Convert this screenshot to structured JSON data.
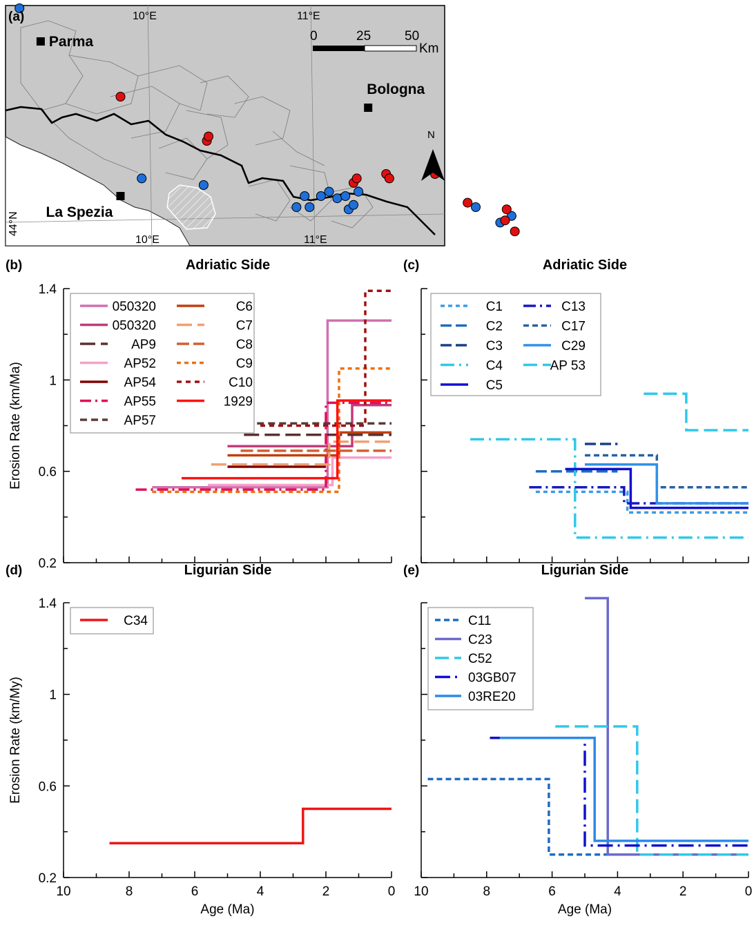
{
  "panel_labels": [
    "(a)",
    "(b)",
    "(c)",
    "(d)",
    "(e)"
  ],
  "map": {
    "cities": [
      {
        "name": "Parma",
        "lon": 9.33,
        "lat": 44.8
      },
      {
        "name": "Bologna",
        "lon": 11.34,
        "lat": 44.5
      },
      {
        "name": "La Spezia",
        "lon": 9.82,
        "lat": 44.1
      }
    ],
    "graticule": {
      "top": [
        "10°E",
        "11°E"
      ],
      "bottom": [
        "10°E",
        "11°E"
      ],
      "left": [
        "44°N"
      ]
    },
    "scalebar": {
      "ticks": [
        "0",
        "25",
        "50"
      ],
      "unit": "Km"
    },
    "north": "N",
    "land_color": "#c8c8c8",
    "sea_color": "#ffffff",
    "sites_blue": [
      [
        9.2,
        44.95
      ],
      [
        9.95,
        44.18
      ],
      [
        10.33,
        44.15
      ],
      [
        10.9,
        44.05
      ],
      [
        10.95,
        44.1
      ],
      [
        10.98,
        44.05
      ],
      [
        11.05,
        44.1
      ],
      [
        11.1,
        44.12
      ],
      [
        11.15,
        44.09
      ],
      [
        11.2,
        44.1
      ],
      [
        11.22,
        44.04
      ],
      [
        11.25,
        44.06
      ],
      [
        11.28,
        44.12
      ],
      [
        12.0,
        44.05
      ],
      [
        12.15,
        43.98
      ],
      [
        12.22,
        44.01
      ]
    ],
    "sites_red": [
      [
        9.82,
        44.55
      ],
      [
        10.35,
        44.35
      ],
      [
        10.36,
        44.37
      ],
      [
        11.25,
        44.16
      ],
      [
        11.27,
        44.18
      ],
      [
        11.45,
        44.2
      ],
      [
        11.47,
        44.18
      ],
      [
        11.75,
        44.2
      ],
      [
        11.95,
        44.07
      ],
      [
        12.19,
        44.04
      ],
      [
        12.18,
        43.99
      ],
      [
        12.24,
        43.94
      ]
    ],
    "blue_color": "#1f6fd9",
    "red_color": "#e01010"
  },
  "chart_data": [
    {
      "id": "b",
      "type": "line",
      "title": "Adriatic Side",
      "ylabel": "Erosion Rate (km/Ma)",
      "xlabel": "",
      "xlim": [
        10,
        0
      ],
      "ylim": [
        0.2,
        1.4
      ],
      "yticks": [
        0.2,
        0.6,
        1.0,
        1.4
      ],
      "ytick_labels": [
        "0.2",
        "0.6",
        "1",
        "1.4"
      ],
      "xticks": [
        10,
        8,
        6,
        4,
        2,
        0
      ],
      "xtick_labels": [],
      "legend": "top-left",
      "series": [
        {
          "name": "050320",
          "color": "#d070b0",
          "dash": "",
          "steps": [
            [
              7.3,
              0.53
            ],
            [
              1.95,
              0.53
            ],
            [
              1.95,
              1.26
            ],
            [
              0,
              1.26
            ]
          ]
        },
        {
          "name": "050320",
          "color": "#c03c78",
          "dash": "",
          "steps": [
            [
              5.0,
              0.71
            ],
            [
              1.2,
              0.71
            ],
            [
              1.2,
              0.89
            ],
            [
              0,
              0.89
            ]
          ]
        },
        {
          "name": "AP9",
          "color": "#5a3030",
          "dash": "22 8",
          "steps": [
            [
              4.5,
              0.76
            ],
            [
              1.8,
              0.76
            ],
            [
              1.8,
              0.76
            ],
            [
              0,
              0.76
            ]
          ]
        },
        {
          "name": "AP52",
          "color": "#f4a0c8",
          "dash": "",
          "steps": [
            [
              5.6,
              0.54
            ],
            [
              1.8,
              0.54
            ],
            [
              1.8,
              0.66
            ],
            [
              0,
              0.66
            ]
          ]
        },
        {
          "name": "AP54",
          "color": "#800000",
          "dash": "",
          "steps": [
            [
              5.0,
              0.62
            ],
            [
              2.0,
              0.62
            ],
            [
              2.0,
              0.62
            ]
          ]
        },
        {
          "name": "AP55",
          "color": "#e0105a",
          "dash": "16 6 3 6",
          "steps": [
            [
              7.8,
              0.52
            ],
            [
              2.0,
              0.52
            ],
            [
              2.0,
              0.9
            ],
            [
              0,
              0.9
            ]
          ]
        },
        {
          "name": "AP57",
          "color": "#5a3a3a",
          "dash": "10 6",
          "steps": [
            [
              4.1,
              0.81
            ],
            [
              1.5,
              0.81
            ],
            [
              1.5,
              0.81
            ],
            [
              0,
              0.81
            ]
          ]
        },
        {
          "name": "C6",
          "color": "#c04010",
          "dash": "",
          "steps": [
            [
              5.0,
              0.67
            ],
            [
              1.6,
              0.67
            ],
            [
              1.6,
              0.77
            ],
            [
              0,
              0.77
            ]
          ]
        },
        {
          "name": "C7",
          "color": "#f0a070",
          "dash": "22 8",
          "steps": [
            [
              5.5,
              0.63
            ],
            [
              1.9,
              0.63
            ],
            [
              1.9,
              0.73
            ],
            [
              0,
              0.73
            ]
          ]
        },
        {
          "name": "C8",
          "color": "#d06030",
          "dash": "18 6",
          "steps": [
            [
              4.6,
              0.69
            ],
            [
              1.7,
              0.69
            ],
            [
              1.7,
              0.69
            ],
            [
              0,
              0.69
            ]
          ]
        },
        {
          "name": "C9",
          "color": "#f07010",
          "dash": "6 5",
          "steps": [
            [
              7.3,
              0.51
            ],
            [
              1.6,
              0.51
            ],
            [
              1.6,
              1.05
            ],
            [
              0,
              1.05
            ]
          ]
        },
        {
          "name": "C10",
          "color": "#a01010",
          "dash": "7 6",
          "steps": [
            [
              4.0,
              0.8
            ],
            [
              0.8,
              0.8
            ],
            [
              0.8,
              1.39
            ],
            [
              0,
              1.39
            ]
          ]
        },
        {
          "name": "1929",
          "color": "#ff1010",
          "dash": "",
          "steps": [
            [
              6.4,
              0.57
            ],
            [
              1.65,
              0.57
            ],
            [
              1.65,
              0.91
            ],
            [
              0,
              0.91
            ]
          ]
        }
      ]
    },
    {
      "id": "c",
      "type": "line",
      "title": "Adriatic Side",
      "ylabel": "",
      "xlabel": "",
      "xlim": [
        10,
        0
      ],
      "ylim": [
        0.2,
        1.4
      ],
      "yticks": [
        0.2,
        0.6,
        1.0,
        1.4
      ],
      "ytick_labels": [],
      "xticks": [
        10,
        8,
        6,
        4,
        2,
        0
      ],
      "xtick_labels": [],
      "legend": "top-left",
      "series": [
        {
          "name": "C1",
          "color": "#3a9be8",
          "dash": "6 5",
          "steps": [
            [
              6.5,
              0.51
            ],
            [
              3.7,
              0.51
            ],
            [
              3.7,
              0.42
            ],
            [
              0,
              0.42
            ]
          ]
        },
        {
          "name": "C2",
          "color": "#1f6cc0",
          "dash": "16 6",
          "steps": [
            [
              6.5,
              0.6
            ],
            [
              4.0,
              0.6
            ],
            [
              4.0,
              0.6
            ]
          ]
        },
        {
          "name": "C3",
          "color": "#1a3f8a",
          "dash": "16 6",
          "steps": [
            [
              5.0,
              0.72
            ],
            [
              4.0,
              0.72
            ]
          ]
        },
        {
          "name": "C4",
          "color": "#30c8e8",
          "dash": "20 7 3 7",
          "steps": [
            [
              8.5,
              0.74
            ],
            [
              5.3,
              0.74
            ],
            [
              5.3,
              0.31
            ],
            [
              0,
              0.31
            ]
          ]
        },
        {
          "name": "C5",
          "color": "#1010d0",
          "dash": "",
          "steps": [
            [
              5.6,
              0.61
            ],
            [
              3.6,
              0.61
            ],
            [
              3.6,
              0.44
            ],
            [
              0,
              0.44
            ]
          ]
        },
        {
          "name": "C13",
          "color": "#1818c0",
          "dash": "18 6 3 6",
          "steps": [
            [
              6.7,
              0.53
            ],
            [
              3.8,
              0.53
            ],
            [
              3.8,
              0.46
            ],
            [
              0,
              0.46
            ]
          ]
        },
        {
          "name": "C17",
          "color": "#2a60a0",
          "dash": "8 5",
          "steps": [
            [
              5.0,
              0.67
            ],
            [
              2.8,
              0.67
            ],
            [
              2.8,
              0.53
            ],
            [
              0,
              0.53
            ]
          ]
        },
        {
          "name": "C29",
          "color": "#3090e8",
          "dash": "",
          "steps": [
            [
              5.0,
              0.63
            ],
            [
              2.8,
              0.63
            ],
            [
              2.8,
              0.46
            ],
            [
              0,
              0.46
            ]
          ]
        },
        {
          "name": "AP 53",
          "color": "#30c8e8",
          "dash": "20 8",
          "steps": [
            [
              3.2,
              0.94
            ],
            [
              1.9,
              0.94
            ],
            [
              1.9,
              0.78
            ],
            [
              0,
              0.78
            ]
          ]
        }
      ]
    },
    {
      "id": "d",
      "type": "line",
      "title": "Ligurian Side",
      "ylabel": "Erosion Rate (km/My)",
      "xlabel": "Age (Ma)",
      "xlim": [
        10,
        0
      ],
      "ylim": [
        0.2,
        1.4
      ],
      "yticks": [
        0.2,
        0.6,
        1.0,
        1.4
      ],
      "ytick_labels": [
        "0.2",
        "0.6",
        "1",
        "1.4"
      ],
      "xticks": [
        10,
        8,
        6,
        4,
        2,
        0
      ],
      "xtick_labels": [
        "10",
        "8",
        "6",
        "4",
        "2",
        "0"
      ],
      "legend": "top-left",
      "series": [
        {
          "name": "C34",
          "color": "#ee1515",
          "dash": "",
          "steps": [
            [
              8.6,
              0.35
            ],
            [
              2.7,
              0.35
            ],
            [
              2.7,
              0.5
            ],
            [
              0,
              0.5
            ]
          ]
        }
      ]
    },
    {
      "id": "e",
      "type": "line",
      "title": "Ligurian Side",
      "ylabel": "",
      "xlabel": "Age (Ma)",
      "xlim": [
        10,
        0
      ],
      "ylim": [
        0.2,
        1.4
      ],
      "yticks": [
        0.2,
        0.6,
        1.0,
        1.4
      ],
      "ytick_labels": [],
      "xticks": [
        10,
        8,
        6,
        4,
        2,
        0
      ],
      "xtick_labels": [
        "10",
        "8",
        "6",
        "4",
        "2",
        "0"
      ],
      "legend": "top-left",
      "series": [
        {
          "name": "C11",
          "color": "#1f6cc0",
          "dash": "8 5",
          "steps": [
            [
              9.8,
              0.63
            ],
            [
              6.1,
              0.63
            ],
            [
              6.1,
              0.3
            ],
            [
              0,
              0.3
            ]
          ]
        },
        {
          "name": "C23",
          "color": "#6a6acc",
          "dash": "",
          "steps": [
            [
              5.0,
              1.42
            ],
            [
              4.3,
              1.42
            ],
            [
              4.3,
              0.3
            ],
            [
              0,
              0.3
            ]
          ]
        },
        {
          "name": "C52",
          "color": "#30c8e8",
          "dash": "20 8",
          "steps": [
            [
              5.9,
              0.86
            ],
            [
              3.4,
              0.86
            ],
            [
              3.4,
              0.3
            ],
            [
              0,
              0.3
            ]
          ]
        },
        {
          "name": "03GB07",
          "color": "#1010d0",
          "dash": "22 7 3 7",
          "steps": [
            [
              7.9,
              0.81
            ],
            [
              5.0,
              0.81
            ],
            [
              5.0,
              0.34
            ],
            [
              0,
              0.34
            ]
          ]
        },
        {
          "name": "03RE20",
          "color": "#2a8ae8",
          "dash": "",
          "steps": [
            [
              7.6,
              0.81
            ],
            [
              4.7,
              0.81
            ],
            [
              4.7,
              0.36
            ],
            [
              0,
              0.36
            ]
          ]
        }
      ]
    }
  ]
}
